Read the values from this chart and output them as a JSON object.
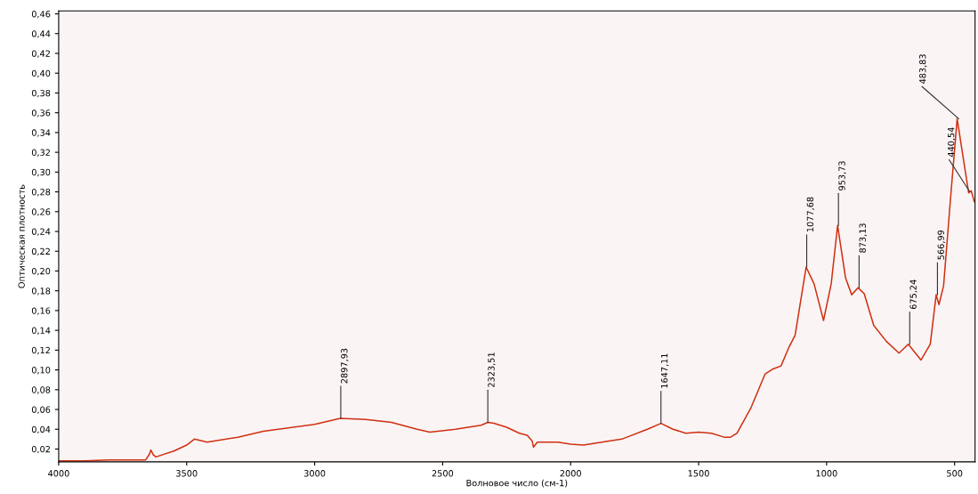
{
  "chart_data": {
    "type": "line",
    "xlabel": "Волновое число (см-1)",
    "ylabel": "Оптическая плотность",
    "x": [
      4000,
      3900,
      3800,
      3700,
      3660,
      3645,
      3640,
      3630,
      3620,
      3550,
      3500,
      3470,
      3420,
      3300,
      3200,
      3000,
      2900,
      2800,
      2700,
      2600,
      2550,
      2450,
      2350,
      2323,
      2300,
      2250,
      2200,
      2170,
      2150,
      2145,
      2130,
      2050,
      2000,
      1950,
      1900,
      1800,
      1700,
      1647,
      1600,
      1550,
      1500,
      1450,
      1400,
      1375,
      1350,
      1295,
      1240,
      1209,
      1178,
      1147,
      1123,
      1080,
      1049,
      1012,
      982,
      957,
      926,
      902,
      877,
      853,
      816,
      767,
      717,
      681,
      631,
      595,
      572,
      561,
      543,
      515,
      490,
      466,
      445,
      435,
      423
    ],
    "series": [
      {
        "color": "#d03010",
        "values": [
          0.008,
          0.008,
          0.009,
          0.009,
          0.009,
          0.015,
          0.019,
          0.014,
          0.012,
          0.018,
          0.024,
          0.03,
          0.027,
          0.032,
          0.038,
          0.045,
          0.051,
          0.05,
          0.047,
          0.04,
          0.037,
          0.04,
          0.044,
          0.047,
          0.046,
          0.042,
          0.036,
          0.034,
          0.028,
          0.022,
          0.027,
          0.027,
          0.025,
          0.024,
          0.026,
          0.03,
          0.04,
          0.046,
          0.04,
          0.036,
          0.037,
          0.036,
          0.032,
          0.032,
          0.036,
          0.062,
          0.096,
          0.101,
          0.104,
          0.123,
          0.135,
          0.204,
          0.187,
          0.15,
          0.187,
          0.246,
          0.193,
          0.176,
          0.183,
          0.177,
          0.145,
          0.129,
          0.117,
          0.126,
          0.11,
          0.126,
          0.176,
          0.166,
          0.185,
          0.276,
          0.354,
          0.314,
          0.279,
          0.281,
          0.27
        ]
      }
    ],
    "xlim": [
      4000,
      420
    ],
    "ylim": [
      0.007,
      0.463
    ],
    "xticks": [
      4000,
      3500,
      3000,
      2500,
      2000,
      1500,
      1000,
      500
    ],
    "yticks": [
      {
        "value": 0.02,
        "label": "0,02"
      },
      {
        "value": 0.04,
        "label": "0,04"
      },
      {
        "value": 0.06,
        "label": "0,06"
      },
      {
        "value": 0.08,
        "label": "0,08"
      },
      {
        "value": 0.1,
        "label": "0,10"
      },
      {
        "value": 0.12,
        "label": "0,12"
      },
      {
        "value": 0.14,
        "label": "0,14"
      },
      {
        "value": 0.16,
        "label": "0,16"
      },
      {
        "value": 0.18,
        "label": "0,18"
      },
      {
        "value": 0.2,
        "label": "0,20"
      },
      {
        "value": 0.22,
        "label": "0,22"
      },
      {
        "value": 0.24,
        "label": "0,24"
      },
      {
        "value": 0.26,
        "label": "0,26"
      },
      {
        "value": 0.28,
        "label": "0,28"
      },
      {
        "value": 0.3,
        "label": "0,30"
      },
      {
        "value": 0.32,
        "label": "0,32"
      },
      {
        "value": 0.34,
        "label": "0,34"
      },
      {
        "value": 0.36,
        "label": "0,36"
      },
      {
        "value": 0.38,
        "label": "0,38"
      },
      {
        "value": 0.4,
        "label": "0,40"
      },
      {
        "value": 0.42,
        "label": "0,42"
      },
      {
        "value": 0.44,
        "label": "0,44"
      },
      {
        "value": 0.46,
        "label": "0,46"
      }
    ],
    "annotations": [
      {
        "text": "2897,93",
        "x": 2897.93,
        "y": 0.051
      },
      {
        "text": "2323,51",
        "x": 2323.51,
        "y": 0.047
      },
      {
        "text": "1647,11",
        "x": 1647.11,
        "y": 0.046
      },
      {
        "text": "1077,68",
        "x": 1077.68,
        "y": 0.204
      },
      {
        "text": "953,73",
        "x": 953.73,
        "y": 0.246
      },
      {
        "text": "873,13",
        "x": 873.13,
        "y": 0.183
      },
      {
        "text": "675,24",
        "x": 675.24,
        "y": 0.126
      },
      {
        "text": "566,99",
        "x": 566.99,
        "y": 0.176
      },
      {
        "text": "483,83",
        "x": 483.83,
        "y": 0.354
      },
      {
        "text": "440,54",
        "x": 440.54,
        "y": 0.28
      }
    ],
    "grid": false,
    "legend": false
  }
}
